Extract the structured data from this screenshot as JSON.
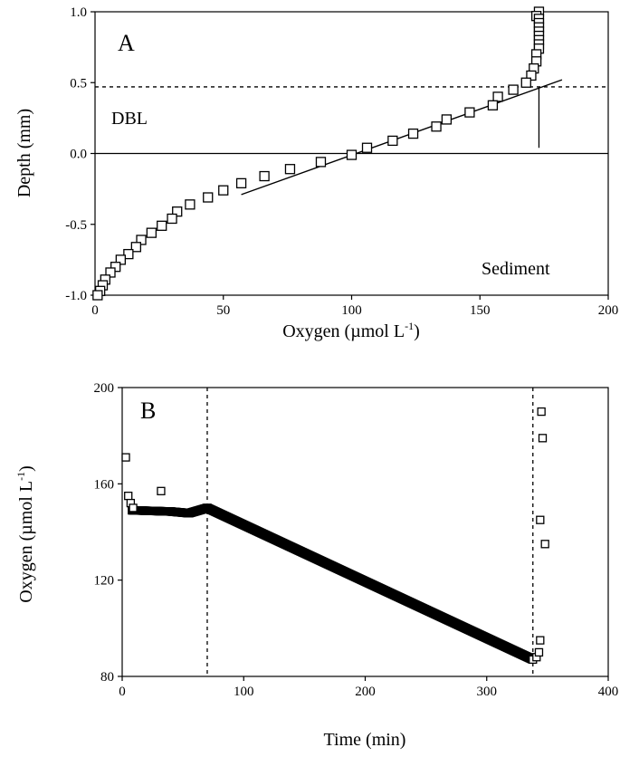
{
  "chart_data": [
    {
      "panel": "A",
      "type": "scatter",
      "xlabel": "Oxygen (µmol L",
      "xlabel_sup": "-1",
      "xlabel_end": ")",
      "ylabel": "Depth (mm)",
      "xlim": [
        0,
        200
      ],
      "ylim": [
        -1.0,
        1.0
      ],
      "xticks": [
        "0",
        "50",
        "100",
        "150",
        "200"
      ],
      "xtick_values": [
        0,
        50,
        100,
        150,
        200
      ],
      "yticks": [
        "-1.0",
        "-0.5",
        "0.0",
        "0.5",
        "1.0"
      ],
      "ytick_values": [
        -1.0,
        -0.5,
        0.0,
        0.5,
        1.0
      ],
      "annotations": {
        "dbl": "DBL",
        "sediment": "Sediment"
      },
      "dbl_boundary_depth": 0.47,
      "sediment_surface_depth": 0.0,
      "vertical_line": {
        "x": 173,
        "y_from": 0.04,
        "y_to": 0.47
      },
      "fit_line": [
        [
          57,
          -0.29
        ],
        [
          182,
          0.52
        ]
      ],
      "points": [
        [
          173,
          1.0
        ],
        [
          172,
          0.97
        ],
        [
          173,
          0.95
        ],
        [
          173,
          0.92
        ],
        [
          173,
          0.89
        ],
        [
          173,
          0.86
        ],
        [
          173,
          0.83
        ],
        [
          173,
          0.8
        ],
        [
          173,
          0.77
        ],
        [
          173,
          0.74
        ],
        [
          172,
          0.7
        ],
        [
          172,
          0.65
        ],
        [
          171,
          0.6
        ],
        [
          170,
          0.55
        ],
        [
          168,
          0.5
        ],
        [
          163,
          0.45
        ],
        [
          157,
          0.4
        ],
        [
          155,
          0.34
        ],
        [
          146,
          0.29
        ],
        [
          137,
          0.24
        ],
        [
          133,
          0.19
        ],
        [
          124,
          0.14
        ],
        [
          116,
          0.09
        ],
        [
          106,
          0.04
        ],
        [
          100,
          -0.01
        ],
        [
          88,
          -0.06
        ],
        [
          76,
          -0.11
        ],
        [
          66,
          -0.16
        ],
        [
          57,
          -0.21
        ],
        [
          50,
          -0.26
        ],
        [
          44,
          -0.31
        ],
        [
          37,
          -0.36
        ],
        [
          32,
          -0.41
        ],
        [
          30,
          -0.46
        ],
        [
          26,
          -0.51
        ],
        [
          22,
          -0.56
        ],
        [
          18,
          -0.61
        ],
        [
          16,
          -0.66
        ],
        [
          13,
          -0.71
        ],
        [
          10,
          -0.75
        ],
        [
          8,
          -0.8
        ],
        [
          6,
          -0.84
        ],
        [
          4,
          -0.89
        ],
        [
          3,
          -0.93
        ],
        [
          2,
          -0.97
        ],
        [
          1,
          -1.0
        ]
      ]
    },
    {
      "panel": "B",
      "type": "scatter",
      "xlabel": "Time (min)",
      "ylabel": "Oxygen (µmol L",
      "ylabel_sup": "-1",
      "ylabel_end": ")",
      "xlim": [
        0,
        400
      ],
      "ylim": [
        80,
        200
      ],
      "xticks": [
        "0",
        "100",
        "200",
        "300",
        "400"
      ],
      "xtick_values": [
        0,
        100,
        200,
        300,
        400
      ],
      "yticks": [
        "80",
        "120",
        "160",
        "200"
      ],
      "ytick_values": [
        80,
        120,
        160,
        200
      ],
      "dashed_verticals": [
        70,
        338
      ],
      "points": [
        [
          3,
          171
        ],
        [
          5,
          155
        ],
        [
          7,
          152
        ],
        [
          9,
          150
        ],
        [
          32,
          157
        ],
        [
          341,
          88
        ],
        [
          343,
          90
        ],
        [
          344,
          95
        ],
        [
          344,
          145
        ],
        [
          345,
          190
        ],
        [
          346,
          179
        ],
        [
          348,
          135
        ]
      ],
      "series_segments": [
        {
          "x_from": 8,
          "x_to": 40,
          "y_from": 149,
          "y_to": 148.5
        },
        {
          "x_from": 40,
          "x_to": 55,
          "y_from": 148.5,
          "y_to": 147.8
        },
        {
          "x_from": 55,
          "x_to": 70,
          "y_from": 147.8,
          "y_to": 150
        },
        {
          "x_from": 70,
          "x_to": 338,
          "y_from": 150,
          "y_to": 87
        }
      ]
    }
  ]
}
